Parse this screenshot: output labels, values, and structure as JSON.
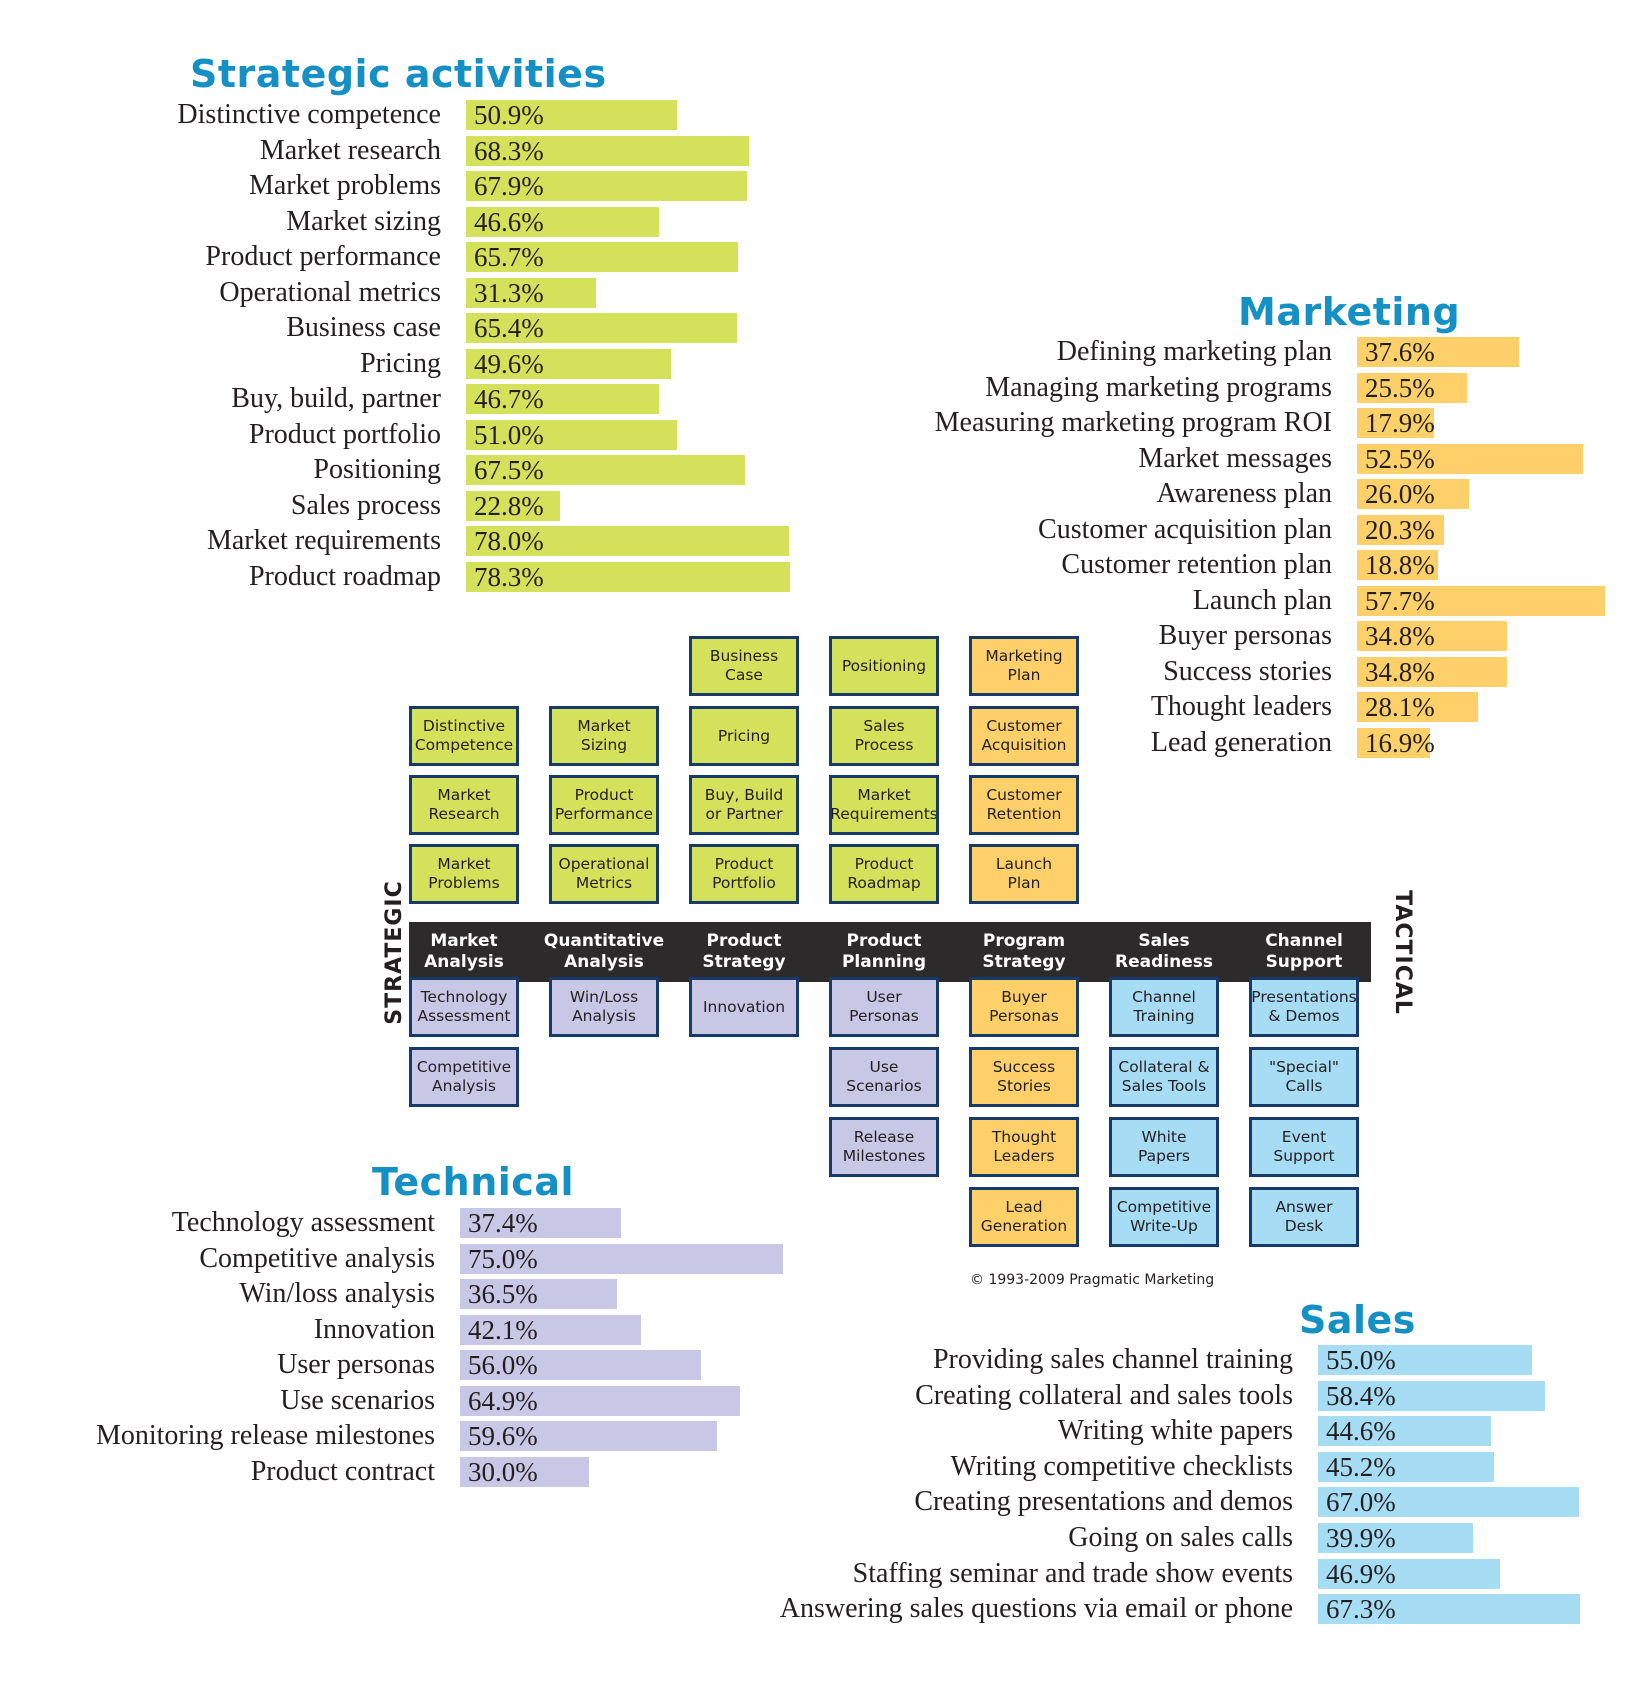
{
  "chart_data": [
    {
      "type": "bar",
      "orientation": "horizontal",
      "title": "Strategic activities",
      "color": "#d3e25a",
      "categories": [
        "Distinctive competence",
        "Market research",
        "Market problems",
        "Market sizing",
        "Product performance",
        "Operational metrics",
        "Business case",
        "Pricing",
        "Buy, build, partner",
        "Product portfolio",
        "Positioning",
        "Sales process",
        "Market requirements",
        "Product roadmap"
      ],
      "values": [
        50.9,
        68.3,
        67.9,
        46.6,
        65.7,
        31.3,
        65.4,
        49.6,
        46.7,
        51.0,
        67.5,
        22.8,
        78.0,
        78.3
      ],
      "value_labels": [
        "50.9%",
        "68.3%",
        "67.9%",
        "46.6%",
        "65.7%",
        "31.3%",
        "65.4%",
        "49.6%",
        "46.7%",
        "51.0%",
        "67.5%",
        "22.8%",
        "78.0%",
        "78.3%"
      ]
    },
    {
      "type": "bar",
      "orientation": "horizontal",
      "title": "Marketing",
      "color": "#fed06a",
      "categories": [
        "Defining marketing plan",
        "Managing marketing programs",
        "Measuring marketing program ROI",
        "Market messages",
        "Awareness plan",
        "Customer acquisition plan",
        "Customer retention plan",
        "Launch plan",
        "Buyer personas",
        "Success stories",
        "Thought leaders",
        "Lead generation"
      ],
      "values": [
        37.6,
        25.5,
        17.9,
        52.5,
        26.0,
        20.3,
        18.8,
        57.7,
        34.8,
        34.8,
        28.1,
        16.9
      ],
      "value_labels": [
        "37.6%",
        "25.5%",
        "17.9%",
        "52.5%",
        "26.0%",
        "20.3%",
        "18.8%",
        "57.7%",
        "34.8%",
        "34.8%",
        "28.1%",
        "16.9%"
      ]
    },
    {
      "type": "bar",
      "orientation": "horizontal",
      "title": "Technical",
      "color": "#c9c7e6",
      "categories": [
        "Technology assessment",
        "Competitive analysis",
        "Win/loss analysis",
        "Innovation",
        "User personas",
        "Use scenarios",
        "Monitoring release milestones",
        "Product contract"
      ],
      "values": [
        37.4,
        75.0,
        36.5,
        42.1,
        56.0,
        64.9,
        59.6,
        30.0
      ],
      "value_labels": [
        "37.4%",
        "75.0%",
        "36.5%",
        "42.1%",
        "56.0%",
        "64.9%",
        "59.6%",
        "30.0%"
      ]
    },
    {
      "type": "bar",
      "orientation": "horizontal",
      "title": "Sales",
      "color": "#a7dcf5",
      "categories": [
        "Providing sales channel training",
        "Creating collateral and sales tools",
        "Writing white papers",
        "Writing competitive checklists",
        "Creating presentations and demos",
        "Going on sales calls",
        "Staffing seminar and trade show events",
        "Answering sales questions via email or phone"
      ],
      "values": [
        55.0,
        58.4,
        44.6,
        45.2,
        67.0,
        39.9,
        46.9,
        67.3
      ],
      "value_labels": [
        "55.0%",
        "58.4%",
        "44.6%",
        "45.2%",
        "67.0%",
        "39.9%",
        "46.9%",
        "67.3%"
      ]
    }
  ],
  "framework": {
    "strategic_label": "STRATEGIC",
    "tactical_label": "TACTICAL",
    "categories": [
      "Market\nAnalysis",
      "Quantitative\nAnalysis",
      "Product\nStrategy",
      "Product\nPlanning",
      "Program\nStrategy",
      "Sales\nReadiness",
      "Channel\nSupport"
    ],
    "columns": [
      {
        "above": [
          "Distinctive\nCompetence",
          "Market\nResearch",
          "Market\nProblems"
        ],
        "above_color": "green",
        "below": [
          "Technology\nAssessment",
          "Competitive\nAnalysis"
        ],
        "below_color": "purple"
      },
      {
        "above": [
          "Market\nSizing",
          "Product\nPerformance",
          "Operational\nMetrics"
        ],
        "above_color": "green",
        "below": [
          "Win/Loss\nAnalysis"
        ],
        "below_color": "purple"
      },
      {
        "above": [
          "Business\nCase",
          "Pricing",
          "Buy, Build\nor Partner",
          "Product\nPortfolio"
        ],
        "above_color": "green",
        "below": [
          "Innovation"
        ],
        "below_color": "purple"
      },
      {
        "above": [
          "Positioning",
          "Sales\nProcess",
          "Market\nRequirements",
          "Product\nRoadmap"
        ],
        "above_color": "green",
        "below": [
          "User\nPersonas",
          "Use\nScenarios",
          "Release\nMilestones"
        ],
        "below_color": "purple"
      },
      {
        "above": [
          "Marketing\nPlan",
          "Customer\nAcquisition",
          "Customer\nRetention",
          "Launch\nPlan"
        ],
        "above_color": "orange",
        "below": [
          "Buyer\nPersonas",
          "Success\nStories",
          "Thought\nLeaders",
          "Lead\nGeneration"
        ],
        "below_color": "orange"
      },
      {
        "above": [],
        "above_color": "blue",
        "below": [
          "Channel\nTraining",
          "Collateral &\nSales Tools",
          "White\nPapers",
          "Competitive\nWrite-Up"
        ],
        "below_color": "blue"
      },
      {
        "above": [],
        "above_color": "blue",
        "below": [
          "Presentations\n& Demos",
          "\"Special\"\nCalls",
          "Event\nSupport",
          "Answer\nDesk"
        ],
        "below_color": "blue"
      }
    ]
  },
  "copyright": "© 1993-2009 Pragmatic Marketing"
}
